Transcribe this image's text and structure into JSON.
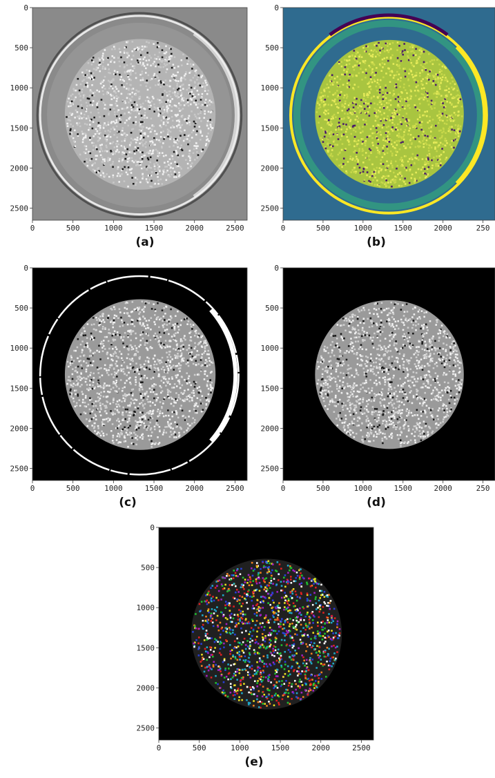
{
  "figure": {
    "panels": [
      {
        "id": "a",
        "caption": "(a)",
        "style": "grayscale",
        "colors": {
          "background": "#8a8a8a",
          "particles": "#c8c8c8",
          "ring": "#e8e8e8",
          "ring_shadow": "#2a2a2a"
        },
        "outer_ring": true,
        "x_ticks": [
          "0",
          "500",
          "1000",
          "1500",
          "2000",
          "2500"
        ],
        "y_ticks": [
          "0",
          "500",
          "1000",
          "1500",
          "2000",
          "2500"
        ]
      },
      {
        "id": "b",
        "caption": "(b)",
        "style": "viridis",
        "colors": {
          "background": "#2f6b8f",
          "particles": "#c7d84a",
          "ring": "#fde725",
          "ring_inner": "#35b779",
          "dark": "#440154"
        },
        "outer_ring": true,
        "x_ticks": [
          "0",
          "500",
          "1000",
          "1500",
          "2000",
          "250"
        ],
        "y_ticks": [
          "0",
          "500",
          "1000",
          "1500",
          "2000",
          "2500"
        ]
      },
      {
        "id": "c",
        "caption": "(c)",
        "style": "binary",
        "colors": {
          "background": "#000000",
          "particles": "#cfcfcf",
          "ring": "#ffffff"
        },
        "outer_ring": true,
        "x_ticks": [
          "0",
          "500",
          "1000",
          "1500",
          "2000",
          "2500"
        ],
        "y_ticks": [
          "0",
          "500",
          "1000",
          "1500",
          "2000",
          "2500"
        ]
      },
      {
        "id": "d",
        "caption": "(d)",
        "style": "binary",
        "colors": {
          "background": "#000000",
          "particles": "#cfcfcf"
        },
        "outer_ring": false,
        "x_ticks": [
          "0",
          "500",
          "1000",
          "1500",
          "2000",
          "250"
        ],
        "y_ticks": [
          "0",
          "500",
          "1000",
          "1500",
          "2000",
          "2500"
        ]
      },
      {
        "id": "e",
        "caption": "(e)",
        "style": "labeled",
        "colors": {
          "background": "#000000",
          "labels": [
            "#e02020",
            "#1fbf2f",
            "#2a3fd8",
            "#e8e020",
            "#20a8c8",
            "#a020c0",
            "#f08020",
            "#ffffff"
          ]
        },
        "outer_ring": false,
        "x_ticks": [
          "0",
          "500",
          "1000",
          "1500",
          "2000",
          "2500"
        ],
        "y_ticks": [
          "0",
          "500",
          "1000",
          "1500",
          "2000",
          "2500"
        ]
      }
    ]
  }
}
